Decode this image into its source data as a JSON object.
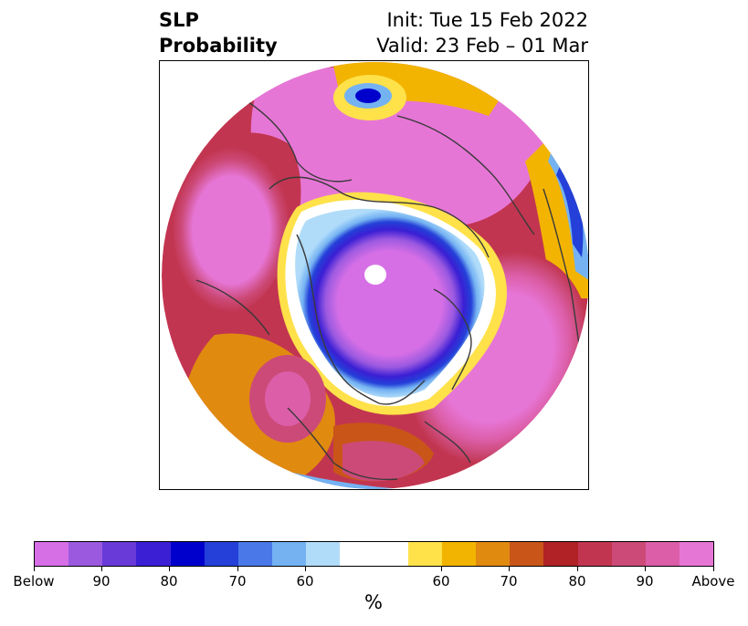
{
  "title": {
    "left_line1": "SLP",
    "left_line2": "Probability",
    "right_line1": "Init: Tue 15 Feb 2022",
    "right_line2": "Valid: 23 Feb – 01 Mar"
  },
  "colorbar": {
    "colors": [
      "#d66fe6",
      "#9b59e0",
      "#6a3ad9",
      "#3a1fd4",
      "#0000cc",
      "#2440d8",
      "#4a78e8",
      "#74b2f2",
      "#b0dcfa",
      "#ffffff",
      "#ffffff",
      "#ffe14a",
      "#f2b400",
      "#e08a10",
      "#c95519",
      "#b02226",
      "#c23550",
      "#cc4a78",
      "#dc5ea8",
      "#e676d6"
    ],
    "tick_labels": [
      "Below",
      "90",
      "80",
      "70",
      "60",
      "60",
      "70",
      "80",
      "90",
      "Above"
    ],
    "unit": "%"
  }
}
